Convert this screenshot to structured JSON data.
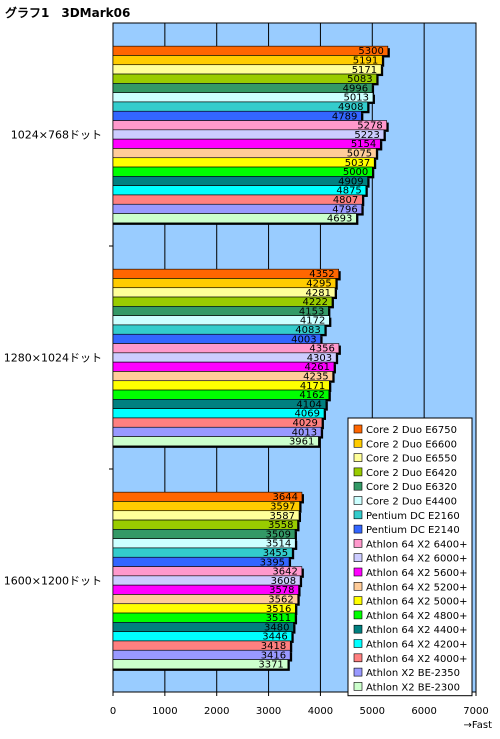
{
  "chart_data": {
    "type": "bar",
    "orientation": "horizontal",
    "title": "グラフ1　3DMark06",
    "xlabel": "→Fast",
    "xlim": [
      0,
      7000
    ],
    "xticks": [
      0,
      1000,
      2000,
      3000,
      4000,
      5000,
      6000,
      7000
    ],
    "grid": true,
    "legend_position": "bottom-right",
    "categories": [
      "1024×768ドット",
      "1280×1024ドット",
      "1600×1200ドット"
    ],
    "series": [
      {
        "name": "Core 2 Duo E6750",
        "color": "#ff6600",
        "values": [
          5300,
          4352,
          3644
        ]
      },
      {
        "name": "Core 2 Duo E6600",
        "color": "#ffcc00",
        "values": [
          5191,
          4295,
          3597
        ]
      },
      {
        "name": "Core 2 Duo E6550",
        "color": "#ffff99",
        "values": [
          5171,
          4281,
          3587
        ]
      },
      {
        "name": "Core 2 Duo E6420",
        "color": "#99cc00",
        "values": [
          5083,
          4222,
          3558
        ]
      },
      {
        "name": "Core 2 Duo E6320",
        "color": "#339966",
        "values": [
          4996,
          4153,
          3509
        ]
      },
      {
        "name": "Core 2 Duo E4400",
        "color": "#ccffff",
        "values": [
          5013,
          4172,
          3514
        ]
      },
      {
        "name": "Pentium DC E2160",
        "color": "#33cccc",
        "values": [
          4908,
          4083,
          3455
        ]
      },
      {
        "name": "Pentium DC E2140",
        "color": "#3366ff",
        "values": [
          4789,
          4003,
          3395
        ]
      },
      {
        "name": "Athlon 64 X2 6400+",
        "color": "#ff99cc",
        "values": [
          5278,
          4356,
          3642
        ]
      },
      {
        "name": "Athlon 64 X2 6000+",
        "color": "#ccccff",
        "values": [
          5223,
          4303,
          3608
        ]
      },
      {
        "name": "Athlon 64 X2 5600+",
        "color": "#ff00ff",
        "values": [
          5154,
          4261,
          3578
        ]
      },
      {
        "name": "Athlon 64 X2 5200+",
        "color": "#ffcc99",
        "values": [
          5075,
          4235,
          3562
        ]
      },
      {
        "name": "Athlon 64 X2 5000+",
        "color": "#ffff00",
        "values": [
          5037,
          4171,
          3516
        ]
      },
      {
        "name": "Athlon 64 X2 4800+",
        "color": "#00ff00",
        "values": [
          5000,
          4162,
          3511
        ]
      },
      {
        "name": "Athlon 64 X2 4400+",
        "color": "#008080",
        "values": [
          4909,
          4104,
          3480
        ]
      },
      {
        "name": "Athlon 64 X2 4200+",
        "color": "#00ffff",
        "values": [
          4875,
          4069,
          3446
        ]
      },
      {
        "name": "Athlon 64 X2 4000+",
        "color": "#ff8080",
        "values": [
          4807,
          4029,
          3418
        ]
      },
      {
        "name": "Athlon X2 BE-2350",
        "color": "#9999ff",
        "values": [
          4796,
          4013,
          3416
        ]
      },
      {
        "name": "Athlon X2 BE-2300",
        "color": "#ccffcc",
        "values": [
          4693,
          3961,
          3371
        ]
      }
    ],
    "plot_background": "#99ccff"
  }
}
